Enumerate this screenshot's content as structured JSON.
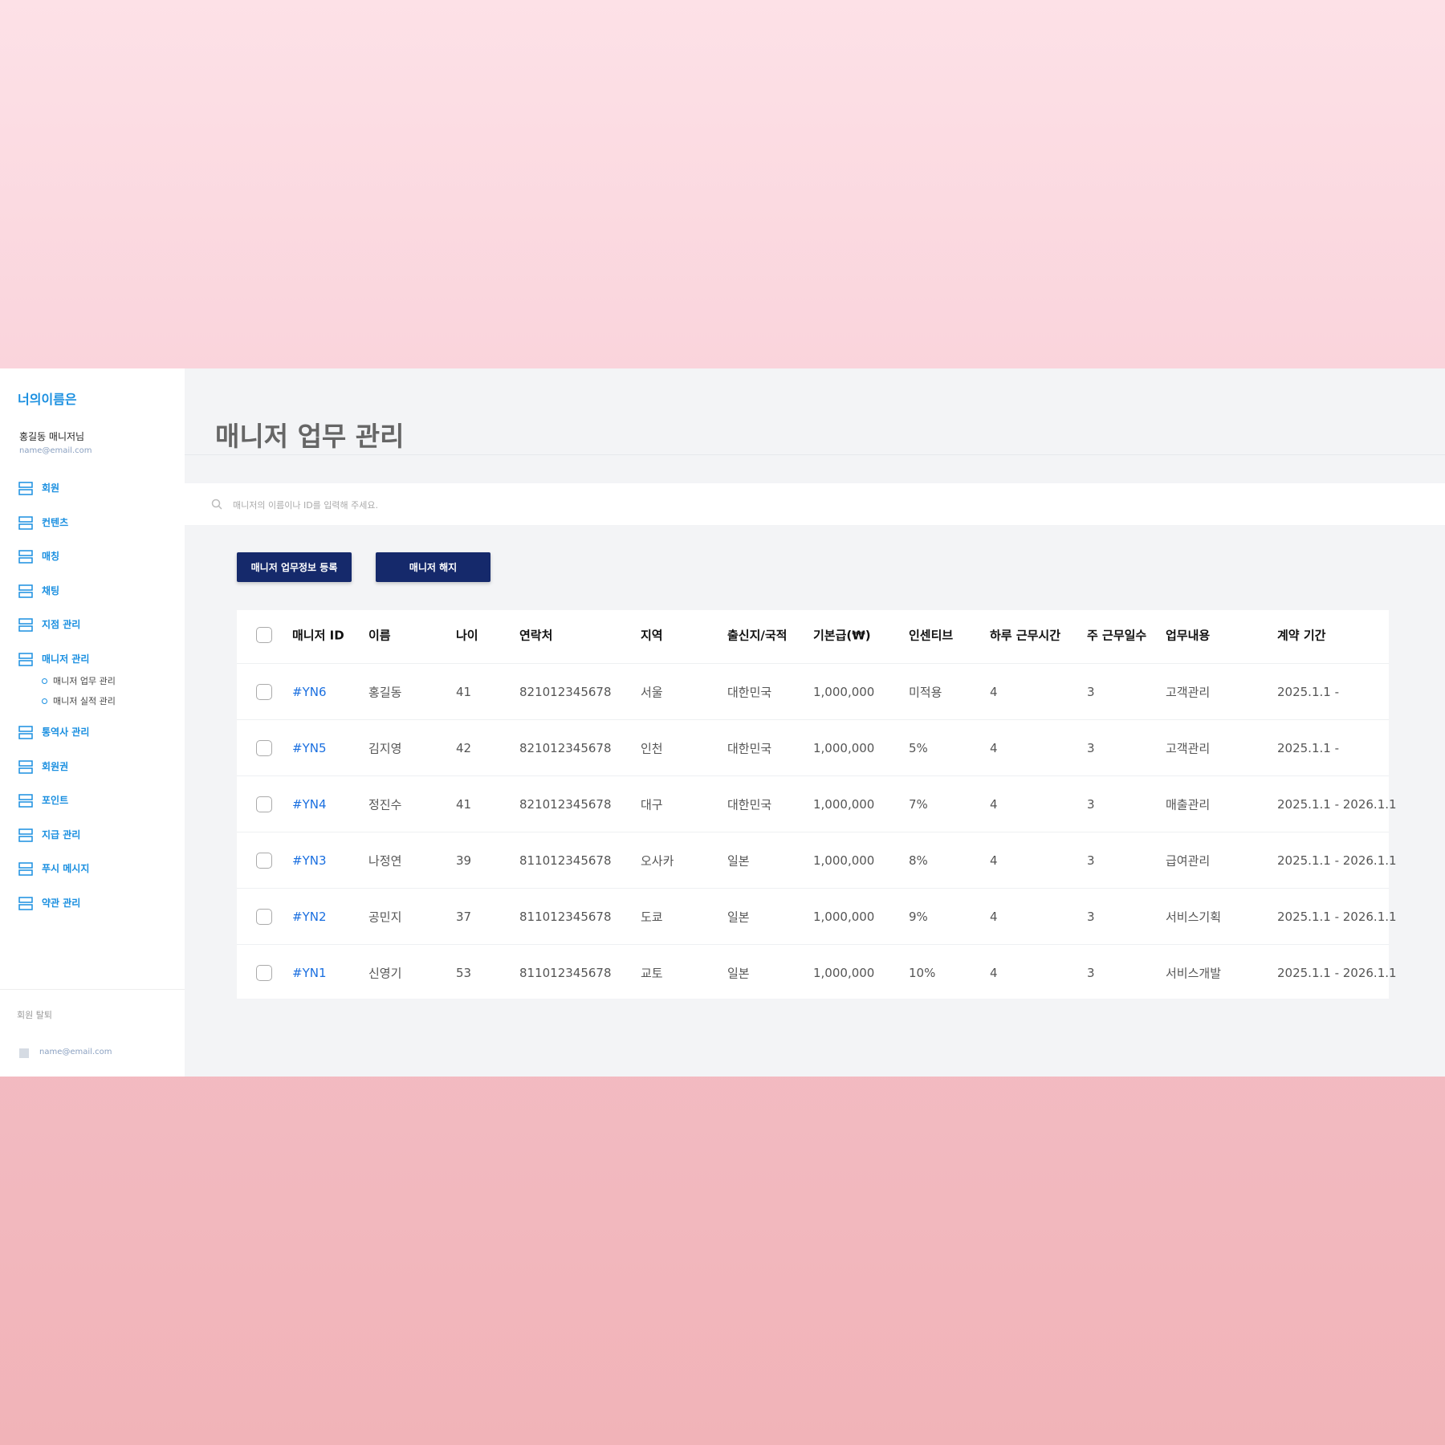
{
  "sidebar": {
    "brand": "너의이름은",
    "user_name": "홍길동 매니저님",
    "user_email": "name@email.com",
    "menu": [
      {
        "label": "회원"
      },
      {
        "label": "컨텐츠"
      },
      {
        "label": "매칭"
      },
      {
        "label": "채팅"
      },
      {
        "label": "지점 관리"
      },
      {
        "label": "매니저 관리",
        "children": [
          "매니저 업무 관리",
          "매니저 실적 관리"
        ]
      },
      {
        "label": "통역사 관리"
      },
      {
        "label": "회원권"
      },
      {
        "label": "포인트"
      },
      {
        "label": "지급 관리"
      },
      {
        "label": "푸시 메시지"
      },
      {
        "label": "약관 관리"
      }
    ],
    "withdraw": "회원 탈퇴",
    "footer_email": "name@email.com"
  },
  "main": {
    "title": "매니저 업무 관리",
    "search_placeholder": "매니저의 이름이나 ID를 입력해 주세요.",
    "buttons": [
      "매니저 업무정보 등록",
      "매니저 해지"
    ],
    "table": {
      "headers": [
        "매니저 ID",
        "이름",
        "나이",
        "연락처",
        "지역",
        "출신지/국적",
        "기본급(₩)",
        "인센티브",
        "하루 근무시간",
        "주 근무일수",
        "업무내용",
        "계약 기간"
      ],
      "rows": [
        [
          "#YN6",
          "홍길동",
          "41",
          "821012345678",
          "서울",
          "대한민국",
          "1,000,000",
          "미적용",
          "4",
          "3",
          "고객관리",
          "2025.1.1 -"
        ],
        [
          "#YN5",
          "김지영",
          "42",
          "821012345678",
          "인천",
          "대한민국",
          "1,000,000",
          "5%",
          "4",
          "3",
          "고객관리",
          "2025.1.1 -"
        ],
        [
          "#YN4",
          "정진수",
          "41",
          "821012345678",
          "대구",
          "대한민국",
          "1,000,000",
          "7%",
          "4",
          "3",
          "매출관리",
          "2025.1.1 - 2026.1.1"
        ],
        [
          "#YN3",
          "나정연",
          "39",
          "811012345678",
          "오사카",
          "일본",
          "1,000,000",
          "8%",
          "4",
          "3",
          "급여관리",
          "2025.1.1 - 2026.1.1"
        ],
        [
          "#YN2",
          "공민지",
          "37",
          "811012345678",
          "도쿄",
          "일본",
          "1,000,000",
          "9%",
          "4",
          "3",
          "서비스기획",
          "2025.1.1 - 2026.1.1"
        ],
        [
          "#YN1",
          "신영기",
          "53",
          "811012345678",
          "교토",
          "일본",
          "1,000,000",
          "10%",
          "4",
          "3",
          "서비스개발",
          "2025.1.1 - 2026.1.1"
        ]
      ]
    }
  }
}
